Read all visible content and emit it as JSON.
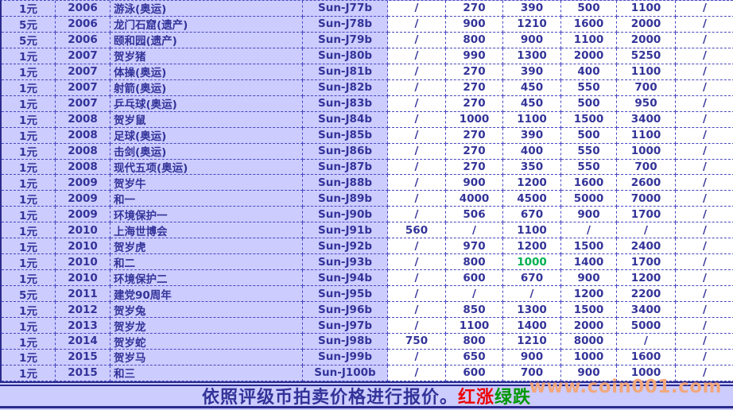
{
  "colors": {
    "lavender": "#CCCCFF",
    "cell_white": "#FFFFFF",
    "text_navy": "#333399",
    "border_blue": "#4747C2",
    "solid_navy": "#2A2A8E",
    "red": "#EE0000",
    "green_footer": "#009900",
    "green_value": "#00B050",
    "watermark_orange": "#F2A87C"
  },
  "table": {
    "rows": [
      {
        "denomination": "1元",
        "year": "2006",
        "name": "游泳(奥运)",
        "code": "Sun-J77b",
        "prices": [
          "/",
          "270",
          "390",
          "500",
          "1100",
          "/"
        ]
      },
      {
        "denomination": "5元",
        "year": "2006",
        "name": "龙门石窟(遗产)",
        "code": "Sun-J78b",
        "prices": [
          "/",
          "900",
          "1210",
          "1600",
          "2000",
          "/"
        ]
      },
      {
        "denomination": "5元",
        "year": "2006",
        "name": "颐和园(遗产)",
        "code": "Sun-J79b",
        "prices": [
          "/",
          "800",
          "900",
          "1100",
          "2000",
          "/"
        ]
      },
      {
        "denomination": "1元",
        "year": "2007",
        "name": "贺岁猪",
        "code": "Sun-J80b",
        "prices": [
          "/",
          "990",
          "1300",
          "2000",
          "5250",
          "/"
        ]
      },
      {
        "denomination": "1元",
        "year": "2007",
        "name": "体操(奥运)",
        "code": "Sun-J81b",
        "prices": [
          "/",
          "270",
          "390",
          "400",
          "1100",
          "/"
        ]
      },
      {
        "denomination": "1元",
        "year": "2007",
        "name": "射箭(奥运)",
        "code": "Sun-J82b",
        "prices": [
          "/",
          "270",
          "450",
          "550",
          "700",
          "/"
        ]
      },
      {
        "denomination": "1元",
        "year": "2007",
        "name": "乒乓球(奥运)",
        "code": "Sun-J83b",
        "prices": [
          "/",
          "270",
          "450",
          "500",
          "950",
          "/"
        ]
      },
      {
        "denomination": "1元",
        "year": "2008",
        "name": "贺岁鼠",
        "code": "Sun-J84b",
        "prices": [
          "/",
          "1000",
          "1100",
          "1500",
          "3400",
          "/"
        ]
      },
      {
        "denomination": "1元",
        "year": "2008",
        "name": "足球(奥运)",
        "code": "Sun-J85b",
        "prices": [
          "/",
          "270",
          "390",
          "500",
          "1100",
          "/"
        ]
      },
      {
        "denomination": "1元",
        "year": "2008",
        "name": "击剑(奥运)",
        "code": "Sun-J86b",
        "prices": [
          "/",
          "270",
          "400",
          "550",
          "1000",
          "/"
        ]
      },
      {
        "denomination": "1元",
        "year": "2008",
        "name": "现代五项(奥运)",
        "code": "Sun-J87b",
        "prices": [
          "/",
          "270",
          "350",
          "550",
          "700",
          "/"
        ]
      },
      {
        "denomination": "1元",
        "year": "2009",
        "name": "贺岁牛",
        "code": "Sun-J88b",
        "prices": [
          "/",
          "900",
          "1200",
          "1600",
          "2600",
          "/"
        ]
      },
      {
        "denomination": "1元",
        "year": "2009",
        "name": "和一",
        "code": "Sun-J89b",
        "prices": [
          "/",
          "4000",
          "4500",
          "5000",
          "7000",
          "/"
        ]
      },
      {
        "denomination": "1元",
        "year": "2009",
        "name": "环境保护一",
        "code": "Sun-J90b",
        "prices": [
          "/",
          "506",
          "670",
          "900",
          "1700",
          "/"
        ]
      },
      {
        "denomination": "1元",
        "year": "2010",
        "name": "上海世博会",
        "code": "Sun-J91b",
        "prices": [
          "560",
          "/",
          "1100",
          "/",
          "/",
          "/"
        ]
      },
      {
        "denomination": "1元",
        "year": "2010",
        "name": "贺岁虎",
        "code": "Sun-J92b",
        "prices": [
          "/",
          "970",
          "1200",
          "1500",
          "2400",
          "/"
        ]
      },
      {
        "denomination": "1元",
        "year": "2010",
        "name": "和二",
        "code": "Sun-J93b",
        "prices": [
          "/",
          "800",
          "1000",
          "1400",
          "1700",
          "/"
        ],
        "green_price_index": 2
      },
      {
        "denomination": "1元",
        "year": "2010",
        "name": "环境保护二",
        "code": "Sun-J94b",
        "prices": [
          "/",
          "600",
          "670",
          "900",
          "1200",
          "/"
        ]
      },
      {
        "denomination": "5元",
        "year": "2011",
        "name": "建党90周年",
        "code": "Sun-J95b",
        "prices": [
          "/",
          "/",
          "/",
          "1200",
          "2200",
          "/"
        ]
      },
      {
        "denomination": "1元",
        "year": "2012",
        "name": "贺岁兔",
        "code": "Sun-J96b",
        "prices": [
          "/",
          "850",
          "1300",
          "1500",
          "3400",
          "/"
        ]
      },
      {
        "denomination": "1元",
        "year": "2013",
        "name": "贺岁龙",
        "code": "Sun-J97b",
        "prices": [
          "/",
          "1100",
          "1400",
          "2000",
          "5000",
          "/"
        ]
      },
      {
        "denomination": "1元",
        "year": "2014",
        "name": "贺岁蛇",
        "code": "Sun-J98b",
        "prices": [
          "750",
          "800",
          "1210",
          "8000",
          "/",
          "/"
        ]
      },
      {
        "denomination": "1元",
        "year": "2015",
        "name": "贺岁马",
        "code": "Sun-J99b",
        "prices": [
          "/",
          "650",
          "900",
          "1000",
          "1600",
          "/"
        ]
      },
      {
        "denomination": "1元",
        "year": "2015",
        "name": "和三",
        "code": "Sun-J100b",
        "prices": [
          "/",
          "600",
          "700",
          "900",
          "1000",
          "/"
        ]
      }
    ]
  },
  "footer": {
    "note_main": "依照评级币拍卖价格进行报价。",
    "note_red": "红涨",
    "note_green": "绿跌",
    "watermark": "www.coin001.com"
  }
}
